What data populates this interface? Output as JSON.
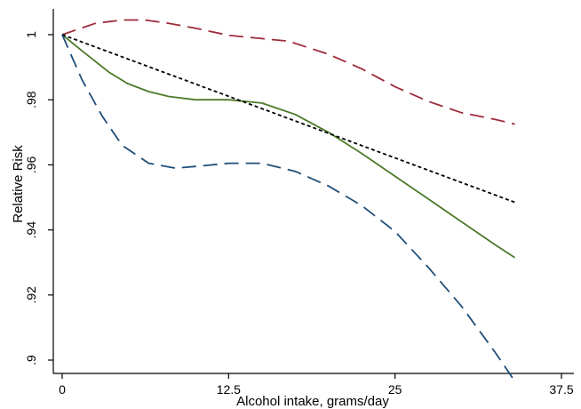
{
  "chart_data": {
    "type": "line",
    "xlabel": "Alcohol intake, grams/day",
    "ylabel": "Relative Risk",
    "xlim": [
      0,
      37.5
    ],
    "ylim": [
      0.9,
      1.0
    ],
    "x_ticks": [
      0,
      12.5,
      25,
      37.5
    ],
    "x_tick_labels": [
      "0",
      "12.5",
      "25",
      "37.5"
    ],
    "y_ticks": [
      0.9,
      0.92,
      0.94,
      0.96,
      0.98,
      1.0
    ],
    "y_tick_labels": [
      ".9",
      ".92",
      ".94",
      ".96",
      ".98",
      "1"
    ],
    "grid": false,
    "legend": "none",
    "series": [
      {
        "color": "#9e2b3a",
        "style": "long-dash",
        "x": [
          0,
          2.5,
          4.5,
          6.2,
          8,
          10,
          12.5,
          15,
          17,
          20,
          22.5,
          25,
          27.5,
          30,
          32.5,
          34
        ],
        "y": [
          1.0,
          1.0035,
          1.0045,
          1.0045,
          1.0035,
          1.002,
          0.9998,
          0.9988,
          0.998,
          0.994,
          0.9895,
          0.984,
          0.9795,
          0.976,
          0.974,
          0.9725
        ]
      },
      {
        "color": "#4e7a2a",
        "style": "solid",
        "x": [
          0,
          1.5,
          3.5,
          4.9,
          6.5,
          8,
          10,
          12.5,
          15,
          17.5,
          20,
          22.5,
          25,
          27.5,
          30,
          32.5,
          34
        ],
        "y": [
          1.0,
          0.995,
          0.9885,
          0.985,
          0.9825,
          0.981,
          0.98,
          0.98,
          0.979,
          0.9755,
          0.97,
          0.9635,
          0.9565,
          0.9495,
          0.9425,
          0.9355,
          0.9315
        ]
      },
      {
        "color": "#000000",
        "style": "short-dash",
        "x": [
          0,
          34
        ],
        "y": [
          1.0,
          0.9485
        ]
      },
      {
        "color": "#1f4e79",
        "style": "long-dash",
        "x": [
          0,
          1.5,
          3,
          4.5,
          6.5,
          8.5,
          10,
          12.5,
          15,
          17.5,
          20,
          22.5,
          25,
          27.5,
          30,
          32.5,
          34
        ],
        "y": [
          1.0,
          0.986,
          0.975,
          0.966,
          0.9605,
          0.959,
          0.9595,
          0.9605,
          0.9605,
          0.958,
          0.9535,
          0.9475,
          0.9395,
          0.9285,
          0.9165,
          0.9025,
          0.8935
        ]
      }
    ]
  }
}
